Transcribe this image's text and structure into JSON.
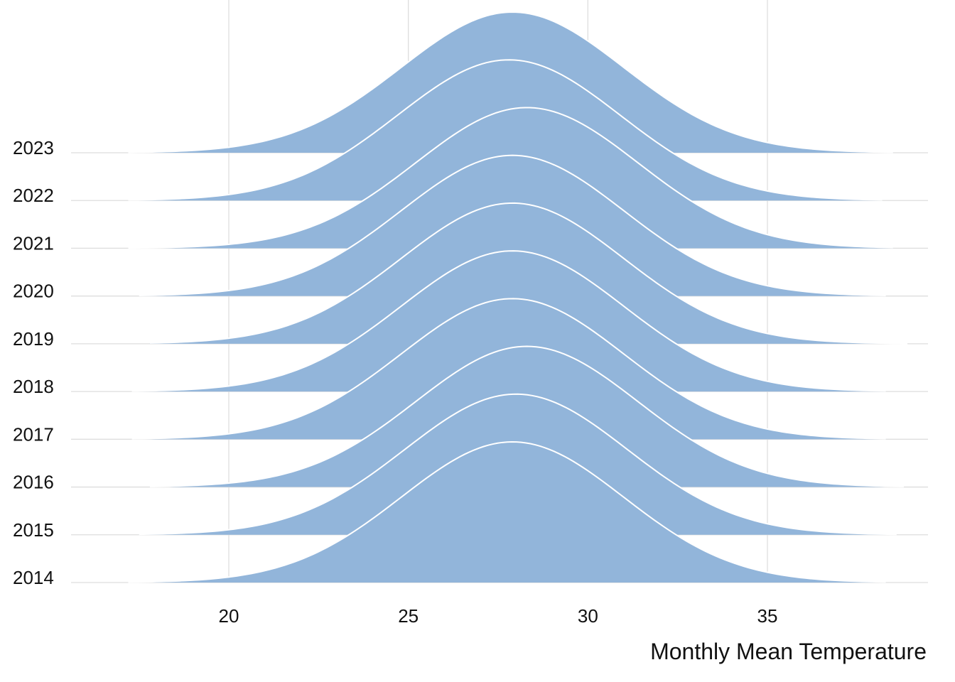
{
  "chart_data": {
    "type": "ridgeline",
    "title": "",
    "xlabel": "Monthly Mean Temperature",
    "ylabel": "",
    "xlim": [
      15.6,
      35.5
    ],
    "x_ticks": [
      20,
      25,
      30,
      35
    ],
    "grid": true,
    "legend": "none",
    "fill_color": "#92b5da",
    "outline_color": "#ffffff",
    "gridline_color": "#dedede",
    "series": [
      {
        "year": "2014",
        "mode": 27.9,
        "sd": 3.1,
        "x_min": 17.2,
        "x_max": 38.3
      },
      {
        "year": "2015",
        "mode": 28.0,
        "sd": 3.1,
        "x_min": 17.5,
        "x_max": 38.6
      },
      {
        "year": "2016",
        "mode": 28.3,
        "sd": 3.1,
        "x_min": 17.8,
        "x_max": 38.8
      },
      {
        "year": "2017",
        "mode": 27.9,
        "sd": 3.1,
        "x_min": 17.3,
        "x_max": 38.3
      },
      {
        "year": "2018",
        "mode": 27.9,
        "sd": 3.1,
        "x_min": 17.3,
        "x_max": 38.3
      },
      {
        "year": "2019",
        "mode": 27.9,
        "sd": 3.1,
        "x_min": 17.8,
        "x_max": 38.9
      },
      {
        "year": "2020",
        "mode": 27.9,
        "sd": 3.1,
        "x_min": 17.5,
        "x_max": 38.3
      },
      {
        "year": "2021",
        "mode": 28.3,
        "sd": 3.1,
        "x_min": 17.2,
        "x_max": 38.5
      },
      {
        "year": "2022",
        "mode": 27.8,
        "sd": 3.1,
        "x_min": 17.2,
        "x_max": 38.2
      },
      {
        "year": "2023",
        "mode": 27.9,
        "sd": 3.1,
        "x_min": 17.2,
        "x_max": 38.5
      }
    ]
  }
}
